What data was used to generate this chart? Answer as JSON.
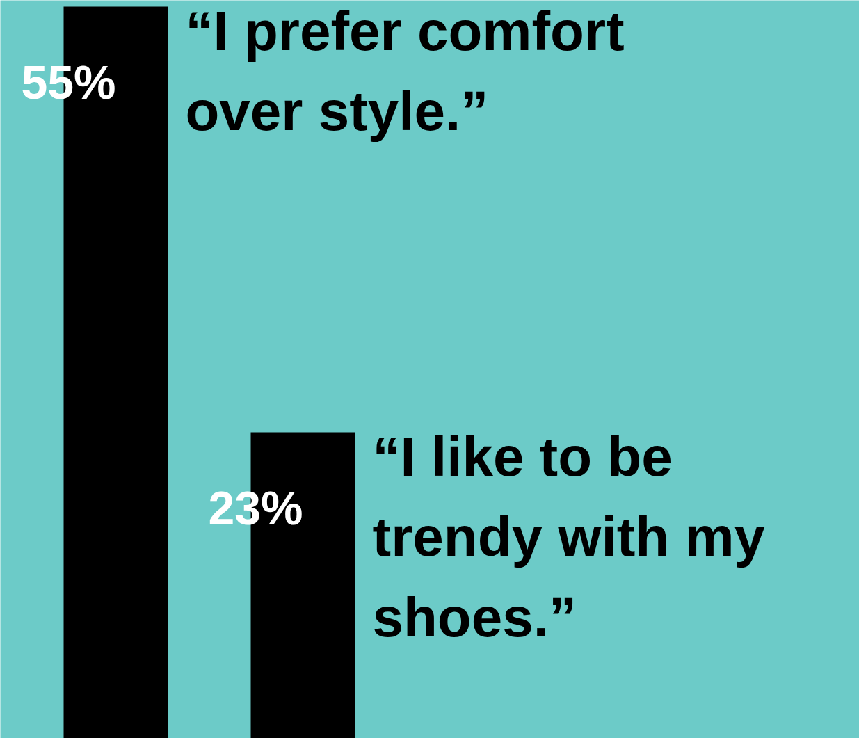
{
  "chart_data": {
    "type": "bar",
    "categories": [
      null,
      null
    ],
    "values": [
      55,
      23
    ],
    "value_labels": [
      "55%",
      "23%"
    ],
    "color": "#000000",
    "annotations": [
      "“I prefer comfort over style.”",
      "“I like to be trendy with my shoes.”"
    ]
  }
}
